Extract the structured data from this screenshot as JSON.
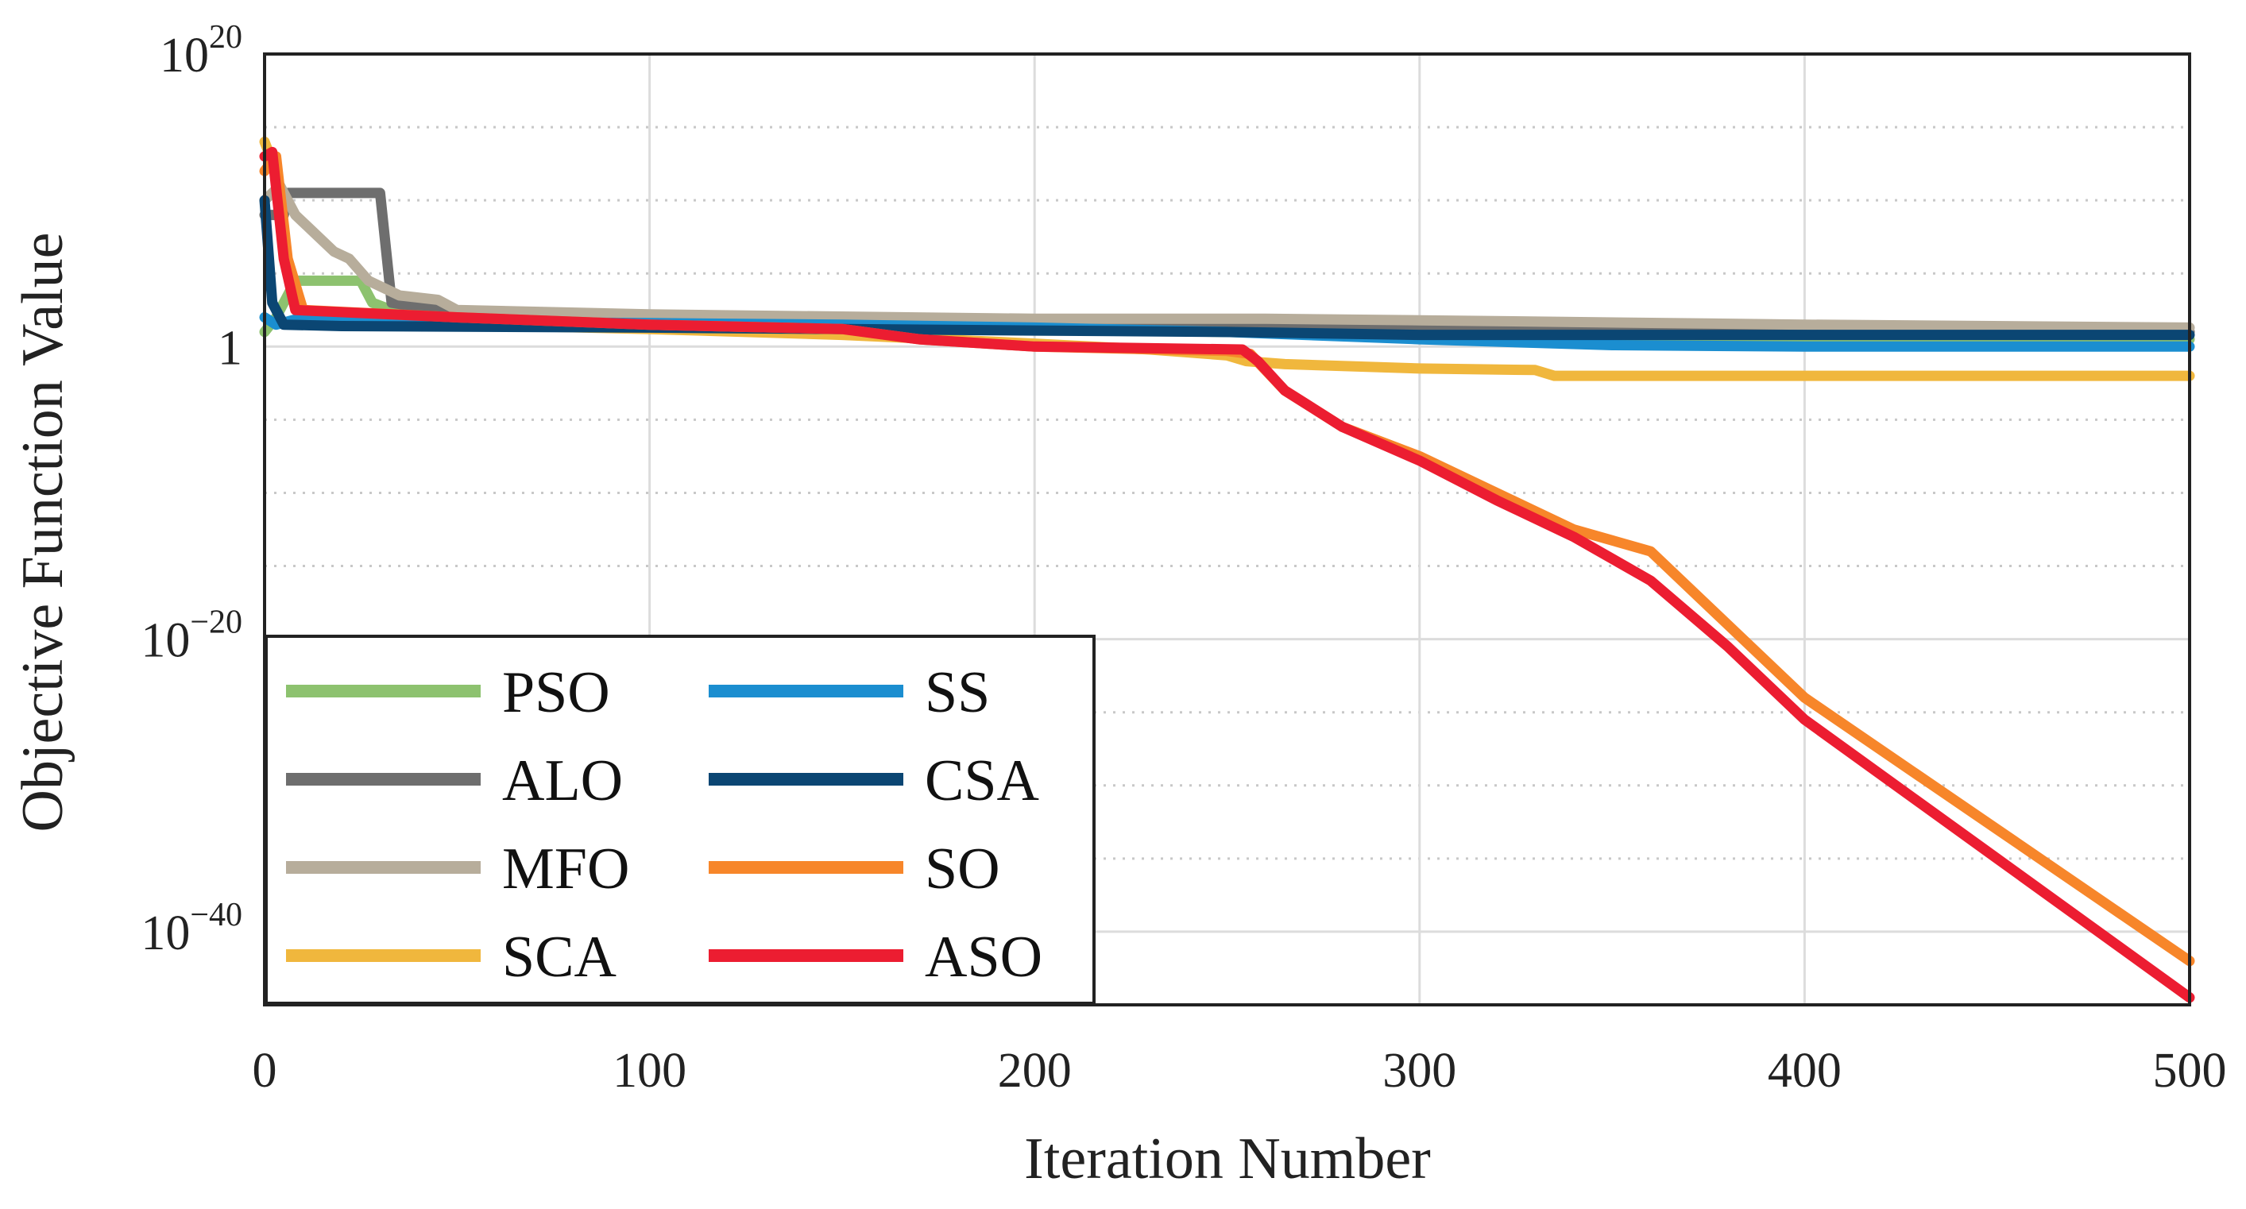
{
  "chart_data": {
    "type": "line",
    "title": "",
    "xlabel": "Iteration Number",
    "ylabel": "Objective Function Value",
    "xlim": [
      0,
      500
    ],
    "ylim_log10": [
      -45,
      20
    ],
    "y_scale": "log",
    "grid": true,
    "legend_position": "bottom-left",
    "x_ticks": [
      {
        "value": 0,
        "label": "0"
      },
      {
        "value": 100,
        "label": "100"
      },
      {
        "value": 200,
        "label": "200"
      },
      {
        "value": 300,
        "label": "300"
      },
      {
        "value": 400,
        "label": "400"
      },
      {
        "value": 500,
        "label": "500"
      }
    ],
    "y_ticks": [
      {
        "log10": 20,
        "base": "10",
        "exp": "20"
      },
      {
        "log10": 0,
        "base": "1",
        "exp": ""
      },
      {
        "log10": -20,
        "base": "10",
        "exp": "−20"
      },
      {
        "log10": -40,
        "base": "10",
        "exp": "−40"
      }
    ],
    "y_minor_grid_log10": [
      15,
      10,
      5,
      -5,
      -10,
      -15,
      -25,
      -30,
      -35
    ],
    "series": [
      {
        "name": "PSO",
        "color": "#8dc26f",
        "log10_values": [
          [
            0,
            1
          ],
          [
            3,
            2
          ],
          [
            8,
            4.5
          ],
          [
            25,
            4.5
          ],
          [
            28,
            3
          ],
          [
            35,
            2.3
          ],
          [
            60,
            2.1
          ],
          [
            100,
            1.8
          ],
          [
            150,
            1.5
          ],
          [
            200,
            1.2
          ],
          [
            300,
            0.8
          ],
          [
            400,
            0.6
          ],
          [
            500,
            0.5
          ]
        ]
      },
      {
        "name": "ALO",
        "color": "#6e6e6e",
        "log10_values": [
          [
            0,
            9
          ],
          [
            5,
            9
          ],
          [
            6,
            10.5
          ],
          [
            30,
            10.5
          ],
          [
            33,
            3
          ],
          [
            45,
            2.5
          ],
          [
            100,
            2
          ],
          [
            200,
            1.6
          ],
          [
            300,
            1.2
          ],
          [
            400,
            1
          ],
          [
            500,
            1
          ]
        ]
      },
      {
        "name": "MFO",
        "color": "#b7ad9b",
        "log10_values": [
          [
            0,
            10
          ],
          [
            4,
            11
          ],
          [
            8,
            9
          ],
          [
            12,
            8
          ],
          [
            18,
            6.5
          ],
          [
            22,
            6
          ],
          [
            27,
            4.5
          ],
          [
            35,
            3.5
          ],
          [
            45,
            3.2
          ],
          [
            50,
            2.5
          ],
          [
            100,
            2.2
          ],
          [
            200,
            1.9
          ],
          [
            260,
            1.9
          ],
          [
            300,
            1.8
          ],
          [
            400,
            1.5
          ],
          [
            500,
            1.3
          ]
        ]
      },
      {
        "name": "SCA",
        "color": "#f0b73d",
        "log10_values": [
          [
            0,
            14
          ],
          [
            3,
            12
          ],
          [
            6,
            5
          ],
          [
            10,
            2
          ],
          [
            50,
            1.5
          ],
          [
            100,
            1.2
          ],
          [
            150,
            0.8
          ],
          [
            200,
            0.2
          ],
          [
            230,
            -0.2
          ],
          [
            250,
            -0.6
          ],
          [
            255,
            -1
          ],
          [
            265,
            -1.2
          ],
          [
            300,
            -1.5
          ],
          [
            330,
            -1.6
          ],
          [
            335,
            -2
          ],
          [
            400,
            -2
          ],
          [
            500,
            -2
          ]
        ]
      },
      {
        "name": "SS",
        "color": "#1b8ed0",
        "log10_values": [
          [
            0,
            2
          ],
          [
            3,
            1.5
          ],
          [
            10,
            2
          ],
          [
            50,
            1.7
          ],
          [
            100,
            1.6
          ],
          [
            150,
            1.5
          ],
          [
            200,
            1.3
          ],
          [
            250,
            1
          ],
          [
            300,
            0.5
          ],
          [
            350,
            0.1
          ],
          [
            400,
            0
          ],
          [
            450,
            0
          ],
          [
            500,
            0
          ]
        ]
      },
      {
        "name": "CSA",
        "color": "#0b4673",
        "log10_values": [
          [
            0,
            10
          ],
          [
            2,
            3
          ],
          [
            5,
            1.5
          ],
          [
            20,
            1.4
          ],
          [
            100,
            1.3
          ],
          [
            200,
            1.1
          ],
          [
            250,
            1
          ],
          [
            300,
            0.8
          ],
          [
            400,
            0.8
          ],
          [
            500,
            0.8
          ]
        ]
      },
      {
        "name": "SO",
        "color": "#f7862a",
        "log10_values": [
          [
            0,
            12
          ],
          [
            3,
            13
          ],
          [
            6,
            6
          ],
          [
            10,
            2.5
          ],
          [
            50,
            2
          ],
          [
            100,
            1.5
          ],
          [
            150,
            1.2
          ],
          [
            170,
            0.5
          ],
          [
            200,
            0
          ],
          [
            250,
            -0.3
          ],
          [
            256,
            -0.5
          ],
          [
            265,
            -3
          ],
          [
            280,
            -5.5
          ],
          [
            300,
            -7.5
          ],
          [
            320,
            -10
          ],
          [
            340,
            -12.5
          ],
          [
            360,
            -14
          ],
          [
            380,
            -19
          ],
          [
            400,
            -24
          ],
          [
            450,
            -33
          ],
          [
            500,
            -42
          ]
        ]
      },
      {
        "name": "ASO",
        "color": "#ec1d31",
        "log10_values": [
          [
            0,
            13
          ],
          [
            2,
            13.3
          ],
          [
            5,
            6
          ],
          [
            8,
            2.5
          ],
          [
            50,
            2
          ],
          [
            100,
            1.5
          ],
          [
            150,
            1.2
          ],
          [
            170,
            0.5
          ],
          [
            200,
            0
          ],
          [
            254,
            -0.2
          ],
          [
            258,
            -1
          ],
          [
            265,
            -3
          ],
          [
            280,
            -5.5
          ],
          [
            300,
            -7.8
          ],
          [
            320,
            -10.5
          ],
          [
            340,
            -13
          ],
          [
            350,
            -14.5
          ],
          [
            360,
            -16
          ],
          [
            380,
            -20.5
          ],
          [
            400,
            -25.5
          ],
          [
            450,
            -35
          ],
          [
            500,
            -44.5
          ]
        ]
      }
    ]
  }
}
